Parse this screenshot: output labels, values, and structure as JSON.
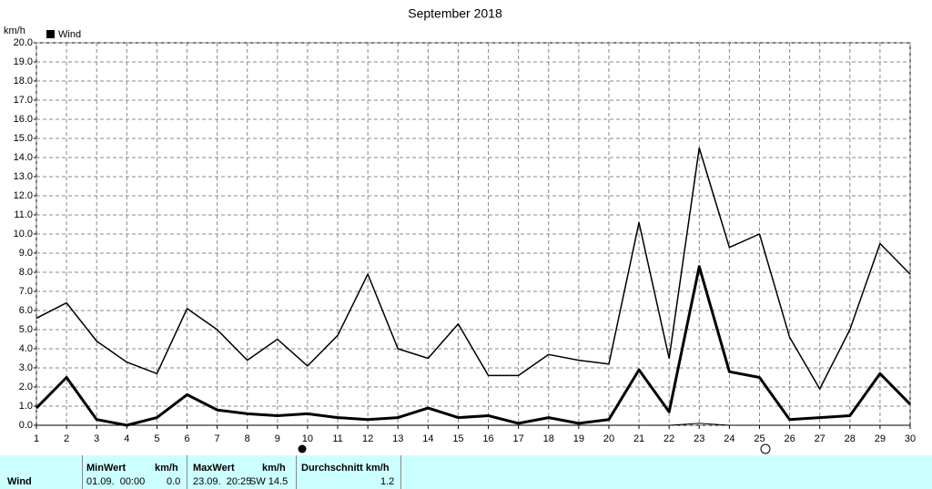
{
  "chart_data": {
    "type": "line",
    "title": "September 2018",
    "y_label": "km/h",
    "legend": "Wind",
    "legend_color": "#000000",
    "grid": true,
    "x": [
      1,
      2,
      3,
      4,
      5,
      6,
      7,
      8,
      9,
      10,
      11,
      12,
      13,
      14,
      15,
      16,
      17,
      18,
      19,
      20,
      21,
      22,
      23,
      24,
      25,
      26,
      27,
      28,
      29,
      30
    ],
    "xlim": [
      1,
      30
    ],
    "xticks": [
      1,
      2,
      3,
      4,
      5,
      6,
      7,
      8,
      9,
      10,
      11,
      12,
      13,
      14,
      15,
      16,
      17,
      18,
      19,
      20,
      21,
      22,
      23,
      24,
      25,
      26,
      27,
      28,
      29,
      30
    ],
    "ylim": [
      0,
      20
    ],
    "yticks": [
      {
        "value": 0,
        "label": "0.0"
      },
      {
        "value": 1,
        "label": "1.0"
      },
      {
        "value": 2,
        "label": "2.0"
      },
      {
        "value": 3,
        "label": "3.0"
      },
      {
        "value": 4,
        "label": "4.0"
      },
      {
        "value": 5,
        "label": "5.0"
      },
      {
        "value": 6,
        "label": "6.0"
      },
      {
        "value": 7,
        "label": "7.0"
      },
      {
        "value": 8,
        "label": "8.0"
      },
      {
        "value": 9,
        "label": "9.0"
      },
      {
        "value": 10,
        "label": "10.0"
      },
      {
        "value": 11,
        "label": "11.0"
      },
      {
        "value": 12,
        "label": "12.0"
      },
      {
        "value": 13,
        "label": "13.0"
      },
      {
        "value": 14,
        "label": "14.0"
      },
      {
        "value": 15,
        "label": "15.0"
      },
      {
        "value": 16,
        "label": "16.0"
      },
      {
        "value": 17,
        "label": "17.0"
      },
      {
        "value": 18,
        "label": "18.0"
      },
      {
        "value": 19,
        "label": "19.0"
      },
      {
        "value": 20,
        "label": "20.0"
      }
    ],
    "series": [
      {
        "color": "#000000",
        "width": 1.5,
        "values": [
          5.6,
          6.4,
          4.4,
          3.3,
          2.7,
          6.1,
          5.0,
          3.4,
          4.5,
          3.1,
          4.7,
          7.9,
          4.0,
          3.5,
          5.3,
          2.6,
          2.6,
          3.7,
          3.4,
          3.2,
          10.6,
          3.5,
          14.5,
          9.3,
          10.0,
          4.6,
          1.9,
          5.0,
          9.5,
          7.9
        ]
      },
      {
        "color": "#000000",
        "width": 3,
        "values": [
          0.9,
          2.5,
          0.3,
          0.0,
          0.4,
          1.6,
          0.8,
          0.6,
          0.5,
          0.6,
          0.4,
          0.3,
          0.4,
          0.9,
          0.4,
          0.5,
          0.1,
          0.4,
          0.1,
          0.3,
          2.9,
          0.7,
          8.3,
          2.8,
          2.5,
          0.3,
          0.4,
          0.5,
          2.7,
          1.1
        ]
      },
      {
        "color": "#000000",
        "width": 1,
        "values": [
          0,
          0,
          0,
          0,
          0,
          0,
          0,
          0,
          0,
          0,
          0,
          0,
          0,
          0,
          0,
          0,
          0,
          0,
          0,
          0,
          0,
          0,
          0.1,
          0,
          0,
          0,
          0,
          0,
          0,
          0
        ]
      }
    ]
  },
  "table": {
    "row_label": "Wind",
    "min": {
      "header": "MinWert",
      "unit": "km/h",
      "time": "01.09.  00:00",
      "value": "0.0"
    },
    "max": {
      "header": "MaxWert",
      "unit": "km/h",
      "time": "23.09.  20:25",
      "value": "SW 14.5"
    },
    "avg": {
      "header": "Durchschnitt km/h",
      "value": "1.2"
    }
  }
}
